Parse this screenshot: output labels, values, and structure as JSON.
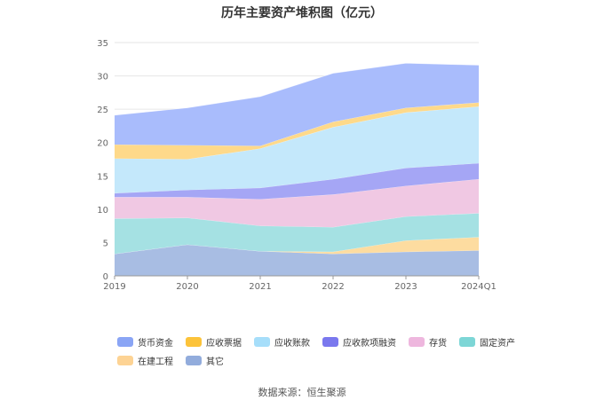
{
  "chart_data": {
    "type": "area",
    "stacked": true,
    "title": "历年主要资产堆积图（亿元）",
    "categories": [
      "2019",
      "2020",
      "2021",
      "2022",
      "2023",
      "2024Q1"
    ],
    "ylim": [
      0,
      35
    ],
    "yticks": [
      0,
      5,
      10,
      15,
      20,
      25,
      30,
      35
    ],
    "grid": true,
    "legend_position": "bottom",
    "series": [
      {
        "name": "其它",
        "color": "#a8bde3",
        "values": [
          3.3,
          4.7,
          3.7,
          3.3,
          3.6,
          3.8
        ]
      },
      {
        "name": "在建工程",
        "color": "#fddca0",
        "values": [
          0.0,
          0.0,
          0.0,
          0.3,
          1.7,
          2.0
        ]
      },
      {
        "name": "固定资产",
        "color": "#a5e1e3",
        "values": [
          5.3,
          4.0,
          3.8,
          3.7,
          3.6,
          3.6
        ]
      },
      {
        "name": "存货",
        "color": "#f0c8e3",
        "values": [
          3.2,
          3.1,
          4.0,
          4.9,
          4.6,
          5.1
        ]
      },
      {
        "name": "应收款项融资",
        "color": "#a5a6f5",
        "values": [
          0.6,
          1.1,
          1.7,
          2.3,
          2.7,
          2.4
        ]
      },
      {
        "name": "应收账款",
        "color": "#c4e8fb",
        "values": [
          5.2,
          4.6,
          5.9,
          7.8,
          8.3,
          8.5
        ]
      },
      {
        "name": "应收票据",
        "color": "#fed98a",
        "values": [
          2.1,
          2.1,
          0.4,
          0.8,
          0.7,
          0.6
        ]
      },
      {
        "name": "货币资金",
        "color": "#a9bcfc",
        "values": [
          4.4,
          5.6,
          7.4,
          7.3,
          6.7,
          5.6
        ]
      }
    ]
  },
  "legend": {
    "rows": [
      [
        {
          "label": "货币资金",
          "color": "#8aa5f5"
        },
        {
          "label": "应收票据",
          "color": "#fcc33a"
        },
        {
          "label": "应收账款",
          "color": "#a6defa"
        },
        {
          "label": "应收款项融资",
          "color": "#7a78ee"
        },
        {
          "label": "存货",
          "color": "#eeb7de"
        },
        {
          "label": "固定资产",
          "color": "#7dd6d6"
        }
      ],
      [
        {
          "label": "在建工程",
          "color": "#fdd394"
        },
        {
          "label": "其它",
          "color": "#92acdc"
        }
      ]
    ]
  },
  "footer": {
    "source": "数据来源：恒生聚源"
  }
}
